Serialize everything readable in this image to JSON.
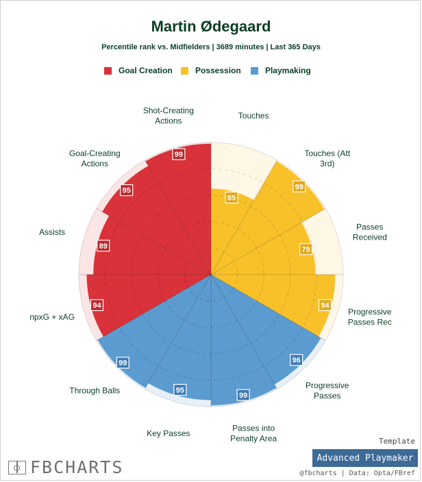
{
  "header": {
    "title": "Martin Ødegaard",
    "subtitle": "Percentile rank vs. Midfielders | 3689 minutes | Last 365 Days"
  },
  "legend": [
    {
      "label": "Goal Creation",
      "color": "#d9323a"
    },
    {
      "label": "Possession",
      "color": "#f8c12a"
    },
    {
      "label": "Playmaking",
      "color": "#5b9bd0"
    }
  ],
  "chart_data": {
    "type": "polar_bar",
    "title": "Martin Ødegaard",
    "subtitle": "Percentile rank vs. Midfielders | 3689 minutes | Last 365 Days",
    "rlim": [
      0,
      100
    ],
    "series": [
      {
        "name": "Percentile rank",
        "values": [
          65,
          99,
          79,
          94,
          96,
          99,
          95,
          99,
          94,
          89,
          95,
          99
        ]
      }
    ],
    "categories": [
      {
        "label": [
          "Touches"
        ],
        "value": 65,
        "group": "Possession"
      },
      {
        "label": [
          "Touches (Att",
          "3rd)"
        ],
        "value": 99,
        "group": "Possession"
      },
      {
        "label": [
          "Passes",
          "Received"
        ],
        "value": 79,
        "group": "Possession"
      },
      {
        "label": [
          "Progressive",
          "Passes Rec"
        ],
        "value": 94,
        "group": "Possession"
      },
      {
        "label": [
          "Progressive",
          "Passes"
        ],
        "value": 96,
        "group": "Playmaking"
      },
      {
        "label": [
          "Passes into",
          "Penalty Area"
        ],
        "value": 99,
        "group": "Playmaking"
      },
      {
        "label": [
          "Key Passes"
        ],
        "value": 95,
        "group": "Playmaking"
      },
      {
        "label": [
          "Through Balls"
        ],
        "value": 99,
        "group": "Playmaking"
      },
      {
        "label": [
          "npxG + xAG"
        ],
        "value": 94,
        "group": "Goal Creation"
      },
      {
        "label": [
          "Assists"
        ],
        "value": 89,
        "group": "Goal Creation"
      },
      {
        "label": [
          "Goal-Creating",
          "Actions"
        ],
        "value": 95,
        "group": "Goal Creation"
      },
      {
        "label": [
          "Shot-Creating",
          "Actions"
        ],
        "value": 99,
        "group": "Goal Creation"
      }
    ],
    "group_colors": {
      "Goal Creation": {
        "fill": "#d9323a",
        "back": "#fbe5e5",
        "badge": "#c0262d"
      },
      "Possession": {
        "fill": "#f8c12a",
        "back": "#fff7e6",
        "badge": "#e0a91a"
      },
      "Playmaking": {
        "fill": "#5b9bd0",
        "back": "#e7f0f9",
        "badge": "#3f7bb3"
      }
    }
  },
  "footer": {
    "brand": "FBCHARTS",
    "template_label": "Template",
    "template_name": "Advanced Playmaker",
    "credit": "@fbcharts | Data: Opta/FBref"
  }
}
